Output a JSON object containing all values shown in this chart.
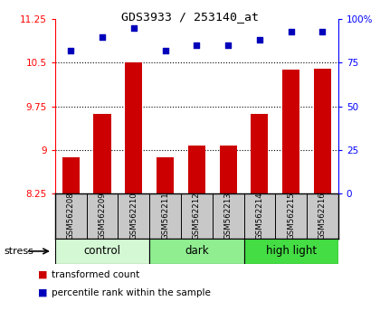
{
  "title": "GDS3933 / 253140_at",
  "samples": [
    "GSM562208",
    "GSM562209",
    "GSM562210",
    "GSM562211",
    "GSM562212",
    "GSM562213",
    "GSM562214",
    "GSM562215",
    "GSM562216"
  ],
  "bar_values": [
    8.88,
    9.62,
    10.51,
    8.88,
    9.07,
    9.08,
    9.62,
    10.38,
    10.4
  ],
  "dot_values": [
    82,
    90,
    95,
    82,
    85,
    85,
    88,
    93,
    93
  ],
  "ylim_left": [
    8.25,
    11.25
  ],
  "ylim_right": [
    0,
    100
  ],
  "yticks_left": [
    8.25,
    9.0,
    9.75,
    10.5,
    11.25
  ],
  "ytick_labels_left": [
    "8.25",
    "9",
    "9.75",
    "10.5",
    "11.25"
  ],
  "ytick_labels_right": [
    "0",
    "25",
    "50",
    "75",
    "100%"
  ],
  "yticks_right": [
    0,
    25,
    50,
    75,
    100
  ],
  "hgrid_lines": [
    9.0,
    9.75,
    10.5
  ],
  "groups": [
    {
      "label": "control",
      "start": 0,
      "end": 3,
      "color": "#d4f7d4"
    },
    {
      "label": "dark",
      "start": 3,
      "end": 6,
      "color": "#90ee90"
    },
    {
      "label": "high light",
      "start": 6,
      "end": 9,
      "color": "#44dd44"
    }
  ],
  "bar_color": "#cc0000",
  "dot_color": "#0000bb",
  "bar_bottom": 8.25,
  "bg_color": "#c8c8c8",
  "stress_label": "stress",
  "legend_items": [
    "transformed count",
    "percentile rank within the sample"
  ]
}
